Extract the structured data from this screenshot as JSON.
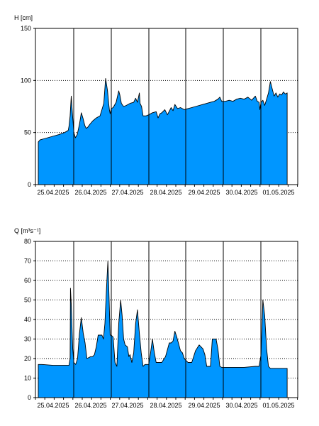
{
  "chart_data": [
    {
      "type": "area",
      "ylabel": "H [cm]",
      "ylim": [
        0,
        150
      ],
      "yticks": [
        0,
        50,
        100,
        150
      ],
      "fill_color": "#0096ff",
      "grid": "horizontal dotted",
      "categories": [
        "25.04.2025",
        "26.04.2025",
        "27.04.2025",
        "28.04.2025",
        "29.04.2025",
        "30.04.2025",
        "01.05.2025"
      ],
      "series": [
        {
          "x": [
            0,
            0.05,
            0.15,
            0.35,
            0.55,
            0.7,
            0.8,
            0.82,
            0.85,
            0.88,
            0.92,
            0.95,
            0.99,
            1.04,
            1.1,
            1.15,
            1.2,
            1.24,
            1.28,
            1.32,
            1.38,
            1.45,
            1.55,
            1.65,
            1.75,
            1.8,
            1.85,
            1.88,
            1.9,
            1.92,
            1.95,
            2.0,
            2.08,
            2.15,
            2.18,
            2.22,
            2.28,
            2.35,
            2.45,
            2.55,
            2.6,
            2.65,
            2.7,
            2.72,
            2.76,
            2.8,
            2.88,
            2.95,
            3.05,
            3.15,
            3.2,
            3.25,
            3.3,
            3.38,
            3.45,
            3.55,
            3.6,
            3.65,
            3.72,
            3.8,
            3.9,
            4.0,
            4.1,
            4.2,
            4.3,
            4.4,
            4.5,
            4.6,
            4.7,
            4.8,
            4.85,
            4.9,
            5.0,
            5.1,
            5.2,
            5.3,
            5.4,
            5.5,
            5.6,
            5.7,
            5.8,
            5.85,
            5.9,
            5.92,
            5.95,
            6.0,
            6.05,
            6.1,
            6.15,
            6.2,
            6.25,
            6.3,
            6.35,
            6.4,
            6.45,
            6.5,
            6.55,
            6.6,
            6.65
          ],
          "values": [
            41,
            43,
            44,
            46,
            48,
            50,
            52,
            56,
            66,
            85,
            64,
            50,
            45,
            48,
            58,
            69,
            63,
            57,
            54,
            55,
            58,
            61,
            64,
            66,
            78,
            102,
            90,
            78,
            72,
            68,
            73,
            74,
            79,
            90,
            86,
            78,
            75,
            76,
            78,
            79,
            83,
            79,
            88,
            78,
            75,
            66,
            66,
            67,
            69,
            70,
            64,
            68,
            69,
            72,
            67,
            74,
            71,
            77,
            73,
            74,
            72,
            73,
            74,
            75,
            76,
            77,
            78,
            79,
            80,
            82,
            84,
            80,
            80,
            81,
            80,
            82,
            83,
            82,
            84,
            81,
            85,
            80,
            79,
            72,
            79,
            81,
            76,
            82,
            88,
            99,
            92,
            85,
            88,
            84,
            87,
            86,
            89,
            87,
            88
          ]
        }
      ]
    },
    {
      "type": "area",
      "ylabel": "Q [m³s⁻¹]",
      "ylim": [
        0,
        80
      ],
      "yticks": [
        0,
        10,
        20,
        30,
        40,
        50,
        60,
        70,
        80
      ],
      "fill_color": "#0096ff",
      "grid": "horizontal dotted",
      "categories": [
        "25.04.2025",
        "26.04.2025",
        "27.04.2025",
        "28.04.2025",
        "29.04.2025",
        "30.04.2025",
        "01.05.2025"
      ],
      "series": [
        {
          "x": [
            0,
            0.1,
            0.4,
            0.7,
            0.8,
            0.82,
            0.85,
            0.86,
            0.88,
            0.92,
            0.95,
            1.0,
            1.05,
            1.1,
            1.15,
            1.2,
            1.25,
            1.3,
            1.4,
            1.45,
            1.5,
            1.55,
            1.6,
            1.7,
            1.74,
            1.78,
            1.82,
            1.86,
            1.88,
            1.92,
            1.95,
            2.0,
            2.05,
            2.1,
            2.15,
            2.2,
            2.24,
            2.28,
            2.32,
            2.38,
            2.42,
            2.45,
            2.5,
            2.55,
            2.6,
            2.65,
            2.7,
            2.75,
            2.8,
            2.85,
            2.95,
            3.0,
            3.05,
            3.1,
            3.15,
            3.2,
            3.3,
            3.4,
            3.5,
            3.55,
            3.6,
            3.65,
            3.7,
            3.8,
            3.85,
            3.9,
            4.0,
            4.1,
            4.2,
            4.3,
            4.4,
            4.45,
            4.5,
            4.55,
            4.6,
            4.65,
            4.75,
            4.8,
            4.85,
            4.9,
            4.95,
            5.0,
            5.2,
            5.5,
            5.8,
            5.85,
            5.9,
            5.95,
            6.0,
            6.05,
            6.1,
            6.15,
            6.2,
            6.3,
            6.5,
            6.65
          ],
          "values": [
            17,
            17,
            16.5,
            16.5,
            16.5,
            16.5,
            20,
            56,
            48,
            25,
            18,
            17,
            20,
            33,
            41,
            33,
            28,
            20,
            21,
            21,
            22,
            26,
            32,
            32,
            30,
            38,
            55,
            70,
            58,
            32,
            32,
            31,
            18,
            16,
            38,
            50,
            42,
            30,
            27,
            26,
            21,
            22,
            18,
            23,
            38,
            45,
            33,
            23,
            16,
            17,
            17,
            23,
            30,
            23,
            18,
            18,
            18,
            21,
            28,
            28,
            29,
            34,
            31,
            24,
            23,
            20,
            18,
            18,
            24,
            27,
            25,
            22,
            16,
            16,
            16,
            30,
            30,
            25,
            16,
            15.5,
            15.5,
            15.5,
            15.5,
            15.5,
            16,
            16,
            16,
            22,
            50,
            42,
            25,
            16,
            15,
            15,
            15,
            15
          ]
        }
      ]
    }
  ]
}
